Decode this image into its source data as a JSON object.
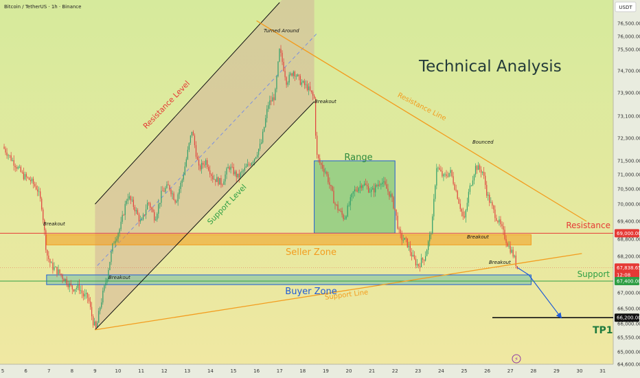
{
  "header": {
    "symbol_title": "Bitcoin / TetherUS · 1h · Binance",
    "currency_label": "USDT"
  },
  "colors": {
    "bg_top": "#d6ea9c",
    "bg_bottom": "#f1e8a2",
    "bull": "#2e9e6a",
    "bear": "#e0403d",
    "orange": "#f39c1e",
    "resistance_red": "#e53935",
    "support_green": "#2e9e44",
    "blue": "#1f5bd6",
    "range_fill": "#84c77e",
    "channel_fill": "#d4b49b"
  },
  "chart_data": {
    "type": "candlestick",
    "title": "Technical Analysis",
    "x_ticks": [
      "5",
      "6",
      "7",
      "8",
      "9",
      "10",
      "11",
      "12",
      "13",
      "14",
      "15",
      "16",
      "17",
      "18",
      "19",
      "20",
      "21",
      "22",
      "23",
      "24",
      "25",
      "26",
      "27",
      "28",
      "29",
      "30",
      "31"
    ],
    "y_ticks": [
      "76,500.00",
      "76,000.00",
      "75,500.00",
      "74,700.00",
      "73,900.00",
      "73,100.00",
      "72,300.00",
      "71,500.00",
      "71,000.00",
      "70,500.00",
      "70,000.00",
      "69,400.00",
      "68,800.00",
      "68,200.00",
      "67,400.00",
      "67,000.00",
      "66,500.00",
      "66,000.00",
      "65,550.00",
      "65,000.00",
      "64,600.00"
    ],
    "ylim": [
      64600,
      76800
    ],
    "price_path": [
      [
        5.0,
        72000
      ],
      [
        5.3,
        71650
      ],
      [
        5.6,
        71300
      ],
      [
        5.9,
        70950
      ],
      [
        6.2,
        70800
      ],
      [
        6.5,
        70500
      ],
      [
        6.7,
        69900
      ],
      [
        6.9,
        68300
      ],
      [
        7.1,
        67900
      ],
      [
        7.4,
        67700
      ],
      [
        7.7,
        67450
      ],
      [
        8.0,
        67150
      ],
      [
        8.3,
        67200
      ],
      [
        8.5,
        66900
      ],
      [
        8.7,
        66850
      ],
      [
        8.9,
        66100
      ],
      [
        9.05,
        65800
      ],
      [
        9.2,
        66500
      ],
      [
        9.5,
        67500
      ],
      [
        9.8,
        68700
      ],
      [
        10.1,
        69200
      ],
      [
        10.4,
        70300
      ],
      [
        10.7,
        69900
      ],
      [
        11.0,
        69300
      ],
      [
        11.3,
        70100
      ],
      [
        11.6,
        69500
      ],
      [
        11.9,
        70400
      ],
      [
        12.2,
        70600
      ],
      [
        12.5,
        70100
      ],
      [
        12.8,
        70900
      ],
      [
        13.2,
        72600
      ],
      [
        13.5,
        71200
      ],
      [
        13.8,
        71500
      ],
      [
        14.1,
        70900
      ],
      [
        14.5,
        70700
      ],
      [
        14.8,
        71300
      ],
      [
        15.2,
        70900
      ],
      [
        15.6,
        71300
      ],
      [
        15.9,
        71600
      ],
      [
        16.2,
        72100
      ],
      [
        16.5,
        73500
      ],
      [
        16.8,
        73800
      ],
      [
        17.0,
        75500
      ],
      [
        17.3,
        74300
      ],
      [
        17.6,
        74700
      ],
      [
        17.9,
        74300
      ],
      [
        18.2,
        74100
      ],
      [
        18.5,
        73700
      ],
      [
        18.6,
        71700
      ],
      [
        18.75,
        71400
      ],
      [
        19.0,
        71100
      ],
      [
        19.4,
        70000
      ],
      [
        19.8,
        69500
      ],
      [
        20.2,
        70400
      ],
      [
        20.6,
        70700
      ],
      [
        21.0,
        70400
      ],
      [
        21.4,
        70800
      ],
      [
        21.8,
        70300
      ],
      [
        22.0,
        69800
      ],
      [
        22.2,
        68900
      ],
      [
        22.5,
        68700
      ],
      [
        22.8,
        68100
      ],
      [
        23.0,
        67900
      ],
      [
        23.3,
        68200
      ],
      [
        23.6,
        69200
      ],
      [
        23.8,
        71300
      ],
      [
        24.1,
        70900
      ],
      [
        24.4,
        71100
      ],
      [
        24.7,
        70300
      ],
      [
        25.0,
        69400
      ],
      [
        25.2,
        70400
      ],
      [
        25.5,
        71300
      ],
      [
        25.8,
        71100
      ],
      [
        26.0,
        70300
      ],
      [
        26.3,
        69700
      ],
      [
        26.6,
        69200
      ],
      [
        26.9,
        68600
      ],
      [
        27.1,
        68300
      ],
      [
        27.3,
        67840
      ]
    ],
    "levels": [
      {
        "label": "69,000.00",
        "value": 69000
      },
      {
        "label": "67,838.65",
        "value": 67838.65
      },
      {
        "label": "12:08",
        "value": 67600
      },
      {
        "label": "67,400.00",
        "value": 67400
      },
      {
        "label": "66,200.00",
        "value": 66200
      }
    ],
    "zones": [
      {
        "label": "Seller Zone",
        "y1": 68600,
        "y2": 68950,
        "x1": 6.9,
        "x2": 27.9
      },
      {
        "label": "Buyer Zone",
        "y1": 67280,
        "y2": 67600,
        "x1": 6.9,
        "x2": 27.9
      },
      {
        "label": "Range",
        "y1": 69000,
        "y2": 71500,
        "x1": 18.5,
        "x2": 22.0
      }
    ],
    "trendlines": [
      {
        "label": "Resistance Level",
        "x1": 9.0,
        "y1": 70000,
        "x2": 17.0,
        "y2": 77300
      },
      {
        "label": "Support Level",
        "x1": 9.0,
        "y1": 65800,
        "x2": 18.5,
        "y2": 73600
      },
      {
        "label": "Resistance Line",
        "x1": 16.0,
        "y1": 76600,
        "x2": 30.3,
        "y2": 69400
      },
      {
        "label": "Support Line",
        "x1": 9.0,
        "y1": 65800,
        "x2": 30.1,
        "y2": 68300
      }
    ],
    "annotations": {
      "turned_around": "Turned Around",
      "breakout": "Breakout",
      "bounced": "Bounced",
      "resistance": "Resistance",
      "support": "Support",
      "tp1": "TP1"
    },
    "projection": [
      [
        27.3,
        67840
      ],
      [
        27.8,
        67600
      ],
      [
        29.2,
        66200
      ]
    ]
  }
}
